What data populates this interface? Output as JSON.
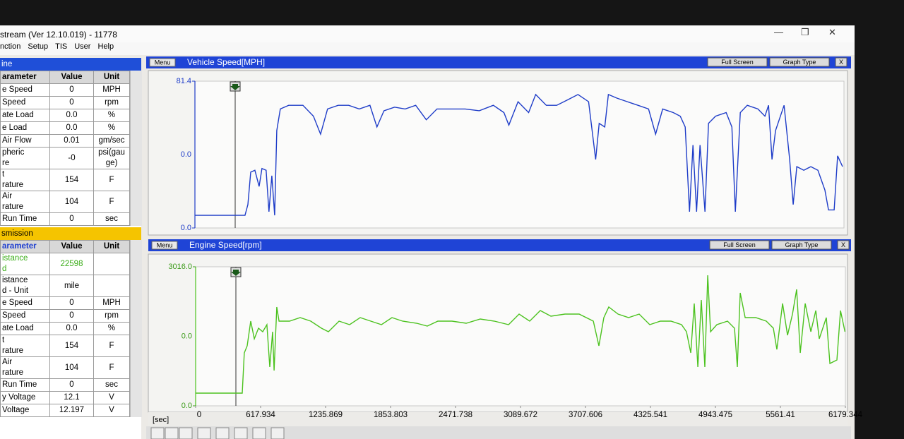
{
  "window": {
    "title": "stream (Ver 12.10.019) - 11778"
  },
  "menu": [
    "nction",
    "Setup",
    "TIS",
    "User",
    "Help"
  ],
  "tables": [
    {
      "header": "ine",
      "columns": [
        "arameter",
        "Value",
        "Unit"
      ],
      "rows": [
        [
          "e Speed",
          "0",
          "MPH"
        ],
        [
          "Speed",
          "0",
          "rpm"
        ],
        [
          "ate Load",
          "0.0",
          "%"
        ],
        [
          "e Load",
          "0.0",
          "%"
        ],
        [
          "Air Flow",
          "0.01",
          "gm/sec"
        ],
        [
          "pheric\nre",
          "-0",
          "psi(gau\nge)"
        ],
        [
          "t\nrature",
          "154",
          "F"
        ],
        [
          "Air\nrature",
          "104",
          "F"
        ],
        [
          "Run Time",
          "0",
          "sec"
        ]
      ]
    },
    {
      "header": "smission",
      "columns": [
        "arameter",
        "Value",
        "Unit"
      ],
      "rows": [
        [
          "istance\nd",
          "22598"
        ],
        [
          "istance\nd - Unit",
          "mile"
        ],
        [
          "e Speed",
          "0",
          "MPH"
        ],
        [
          "Speed",
          "0",
          "rpm"
        ],
        [
          "ate Load",
          "0.0",
          "%"
        ],
        [
          "t\nrature",
          "154",
          "F"
        ],
        [
          "Air\nrature",
          "104",
          "F"
        ],
        [
          "Run Time",
          "0",
          "sec"
        ],
        [
          "y Voltage",
          "12.1",
          "V"
        ],
        [
          "Voltage",
          "12.197",
          "V"
        ]
      ]
    }
  ],
  "graphs": [
    {
      "menu": "Menu",
      "buttons": [
        "Full Screen",
        "Graph Type",
        "X"
      ]
    },
    {
      "menu": "Menu",
      "buttons": [
        "Full Screen",
        "Graph Type",
        "X"
      ]
    }
  ],
  "chart_data": [
    {
      "type": "line",
      "title": "Vehicle Speed[MPH]",
      "color": "#1e3cc8",
      "xlim": [
        0,
        6179.344
      ],
      "ylim": [
        0,
        81.4
      ],
      "yticks": [
        {
          "value": 0,
          "label": "0.0"
        },
        81.4
      ],
      "center_label": "0.0",
      "x": [
        0,
        477,
        504,
        531,
        571,
        611,
        638,
        678,
        705,
        732,
        759,
        779,
        813,
        893,
        1028,
        1128,
        1196,
        1263,
        1364,
        1464,
        1565,
        1666,
        1733,
        1800,
        1901,
        2002,
        2102,
        2203,
        2304,
        2438,
        2573,
        2707,
        2841,
        2942,
        2989,
        3076,
        3177,
        3244,
        3345,
        3445,
        3546,
        3647,
        3748,
        3815,
        3849,
        3902,
        3936,
        4017,
        4117,
        4218,
        4319,
        4386,
        4453,
        4554,
        4621,
        4668,
        4709,
        4742,
        4776,
        4809,
        4856,
        4890,
        4957,
        5058,
        5112,
        5145,
        5192,
        5259,
        5360,
        5427,
        5461,
        5494,
        5528,
        5609,
        5662,
        5696,
        5730,
        5797,
        5864,
        5931,
        5998,
        6032,
        6086,
        6119,
        6166
      ],
      "values": [
        7,
        7,
        13,
        31,
        32,
        23,
        33,
        32,
        9,
        29,
        7,
        54,
        66,
        68,
        68,
        62,
        52,
        66,
        68,
        68,
        66,
        68,
        56,
        65,
        67,
        66,
        68,
        60,
        66,
        66,
        66,
        65,
        68,
        64,
        57,
        70,
        64,
        74,
        68,
        68,
        71,
        74,
        70,
        38,
        58,
        56,
        74,
        72,
        70,
        68,
        66,
        52,
        66,
        64,
        62,
        56,
        9,
        46,
        9,
        46,
        9,
        58,
        62,
        64,
        56,
        9,
        64,
        68,
        66,
        62,
        68,
        38,
        54,
        68,
        38,
        13,
        34,
        32,
        34,
        32,
        21,
        10,
        10,
        40,
        34
      ]
    },
    {
      "type": "line",
      "title": "Engine Speed[rpm]",
      "color": "#4cc21f",
      "xlim": [
        0,
        6179.344
      ],
      "ylim": [
        0,
        3016
      ],
      "yticks": [
        {
          "value": 0,
          "label": "0.0"
        },
        {
          "value": 3016,
          "label": "3016.0"
        }
      ],
      "center_label": "0.0",
      "x_label": "[sec]",
      "xticks": [
        0,
        617.934,
        1235.869,
        1853.803,
        2471.738,
        3089.672,
        3707.606,
        4325.541,
        4943.475,
        5561.41,
        6179.344
      ],
      "x": [
        0,
        443,
        463,
        490,
        524,
        558,
        598,
        638,
        678,
        705,
        732,
        746,
        772,
        793,
        826,
        893,
        994,
        1095,
        1196,
        1263,
        1364,
        1464,
        1565,
        1666,
        1767,
        1867,
        1968,
        2102,
        2203,
        2304,
        2438,
        2573,
        2707,
        2841,
        2976,
        3076,
        3177,
        3278,
        3379,
        3513,
        3647,
        3782,
        3835,
        3882,
        3929,
        4017,
        4117,
        4218,
        4319,
        4420,
        4520,
        4621,
        4668,
        4709,
        4742,
        4776,
        4809,
        4843,
        4870,
        4897,
        4957,
        5058,
        5125,
        5152,
        5179,
        5226,
        5327,
        5427,
        5494,
        5528,
        5582,
        5629,
        5676,
        5716,
        5750,
        5797,
        5851,
        5898,
        5931,
        5998,
        6032,
        6099,
        6133,
        6175
      ],
      "values": [
        276,
        276,
        1148,
        1301,
        1837,
        1454,
        1684,
        1608,
        1761,
        842,
        1608,
        766,
        2143,
        1837,
        1837,
        1837,
        1914,
        1837,
        1684,
        1608,
        1837,
        1761,
        1914,
        1837,
        1761,
        1914,
        1837,
        1791,
        1730,
        1837,
        1837,
        1791,
        1883,
        1837,
        1761,
        1990,
        1837,
        2067,
        1944,
        1990,
        1990,
        1837,
        1301,
        1914,
        2143,
        1990,
        1914,
        1990,
        1761,
        1837,
        1837,
        1761,
        1608,
        1148,
        2220,
        842,
        2297,
        842,
        2832,
        1608,
        1761,
        1837,
        1684,
        842,
        2450,
        1914,
        1914,
        1837,
        1684,
        1224,
        2220,
        1531,
        1990,
        2526,
        1148,
        2220,
        1608,
        2067,
        1454,
        1914,
        919,
        995,
        2067,
        1608
      ]
    }
  ]
}
